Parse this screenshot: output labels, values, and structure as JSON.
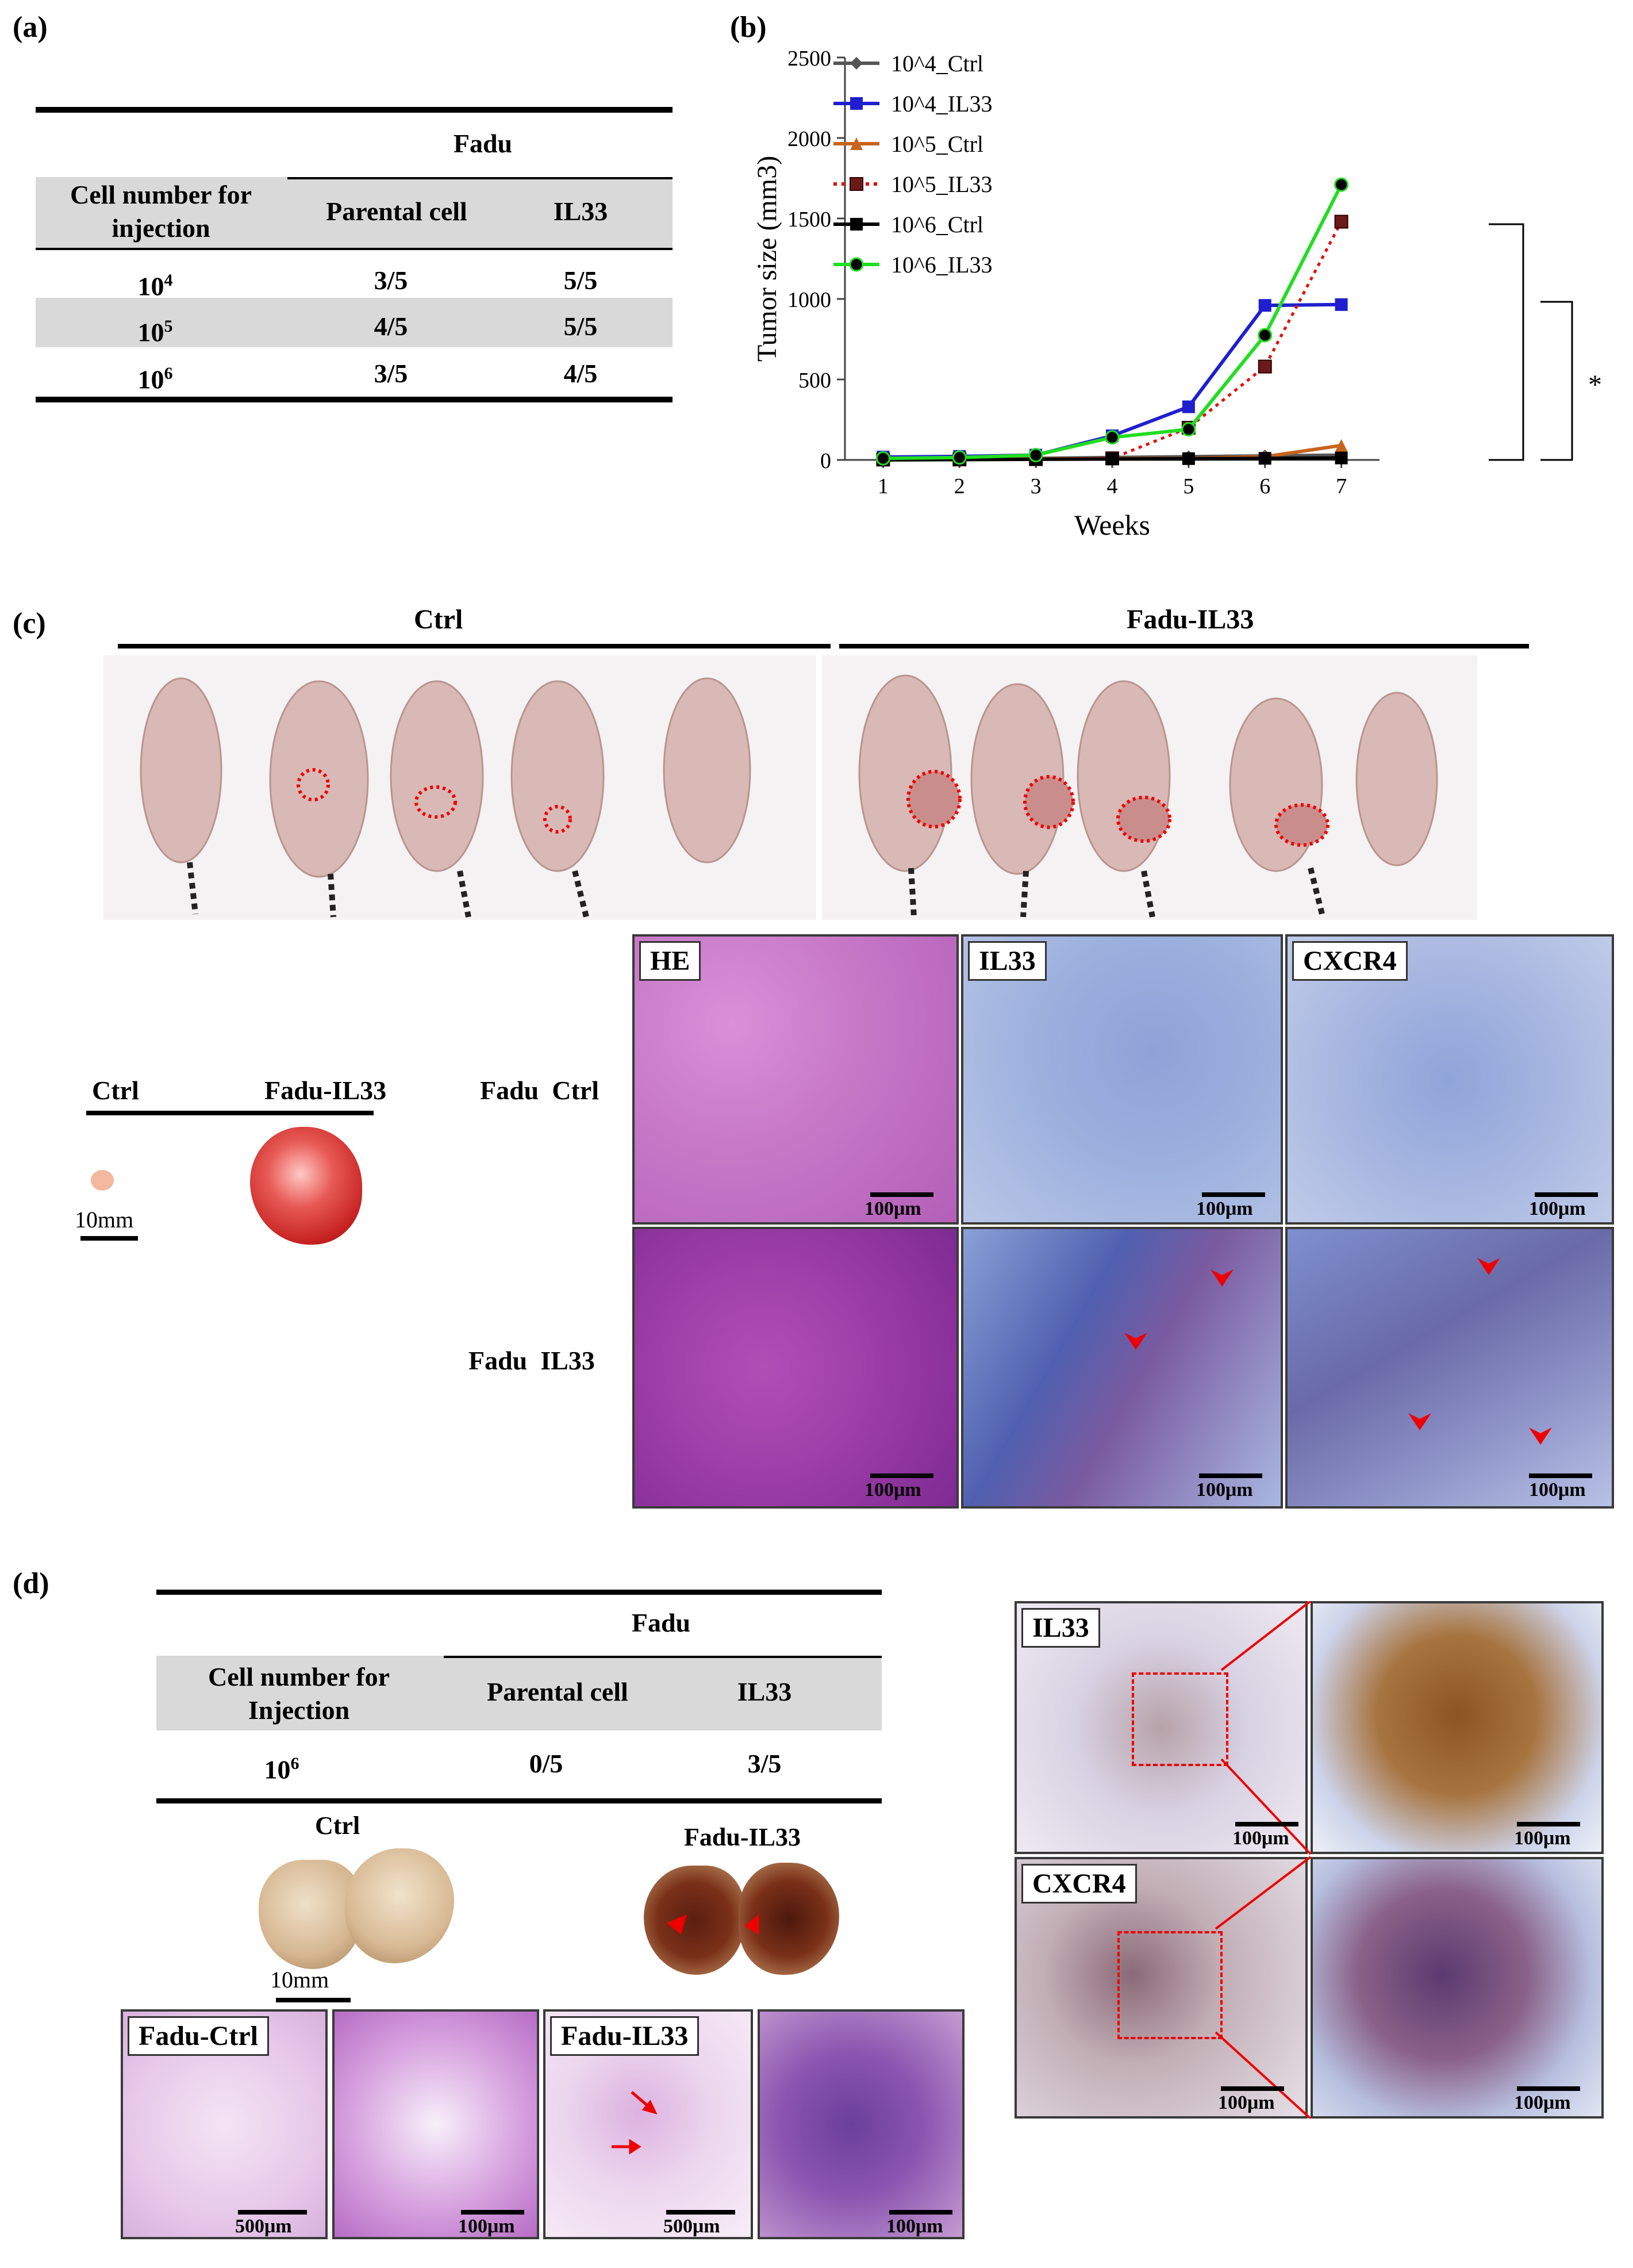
{
  "panel_a": {
    "label": "(a)",
    "group_header": "Fadu",
    "columns": [
      "Cell number for injection",
      "Parental cell",
      "IL33"
    ],
    "rows": [
      {
        "cells": "10",
        "exp": "4",
        "parental": "3/5",
        "il33": "5/5"
      },
      {
        "cells": "10",
        "exp": "5",
        "parental": "4/5",
        "il33": "5/5"
      },
      {
        "cells": "10",
        "exp": "6",
        "parental": "3/5",
        "il33": "4/5"
      }
    ]
  },
  "panel_b": {
    "label": "(b)",
    "significance": "*"
  },
  "chart_data": {
    "type": "line",
    "xlabel": "Weeks",
    "ylabel": "Tumor size (mm3)",
    "x": [
      1,
      2,
      3,
      4,
      5,
      6,
      7
    ],
    "ylim": [
      0,
      2500
    ],
    "yticks": [
      0,
      500,
      1000,
      1500,
      2000,
      2500
    ],
    "legend_position": "top-left",
    "grid": false,
    "series": [
      {
        "name": "10^4_Ctrl",
        "color": "#555555",
        "marker": "diamond",
        "dash": "solid",
        "values": [
          5,
          8,
          10,
          15,
          20,
          25,
          30
        ]
      },
      {
        "name": "10^4_IL33",
        "color": "#1f1fcf",
        "marker": "square",
        "dash": "solid",
        "values": [
          18,
          22,
          30,
          150,
          330,
          960,
          965
        ]
      },
      {
        "name": "10^5_Ctrl",
        "color": "#c8641e",
        "marker": "triangle",
        "dash": "solid",
        "values": [
          3,
          4,
          6,
          8,
          10,
          20,
          90
        ]
      },
      {
        "name": "10^5_IL33",
        "color": "#e01010",
        "marker": "square-dark",
        "dash": "dotted",
        "values": [
          2,
          3,
          5,
          10,
          200,
          580,
          1480
        ]
      },
      {
        "name": "10^6_Ctrl",
        "color": "#000000",
        "marker": "square",
        "dash": "solid",
        "values": [
          0,
          2,
          4,
          6,
          8,
          10,
          12
        ]
      },
      {
        "name": "10^6_IL33",
        "color": "#22dd22",
        "marker": "circle",
        "dash": "solid",
        "values": [
          10,
          15,
          30,
          140,
          190,
          775,
          1710
        ]
      }
    ]
  },
  "panel_c": {
    "label": "(c)",
    "group_ctrl": "Ctrl",
    "group_il33": "Fadu-IL33",
    "tumor_ctrl": "Ctrl",
    "tumor_il33": "Fadu-IL33",
    "tumor_scale": "10mm",
    "row_ctrl": "Fadu  Ctrl",
    "row_il33": "Fadu  IL33",
    "stains": [
      "HE",
      "IL33",
      "CXCR4"
    ],
    "scale": "100μm"
  },
  "panel_d": {
    "label": "(d)",
    "group_header": "Fadu",
    "columns": [
      "Cell number for Injection",
      "Parental cell",
      "IL33"
    ],
    "row": {
      "cells": "10",
      "exp": "6",
      "parental": "0/5",
      "il33": "3/5"
    },
    "lung_ctrl": "Ctrl",
    "lung_il33": "Fadu-IL33",
    "lung_scale": "10mm",
    "he_ctrl": "Fadu-Ctrl",
    "he_il33": "Fadu-IL33",
    "scale_500": "500μm",
    "scale_100": "100μm",
    "stain_il33": "IL33",
    "stain_cxcr4": "CXCR4"
  }
}
